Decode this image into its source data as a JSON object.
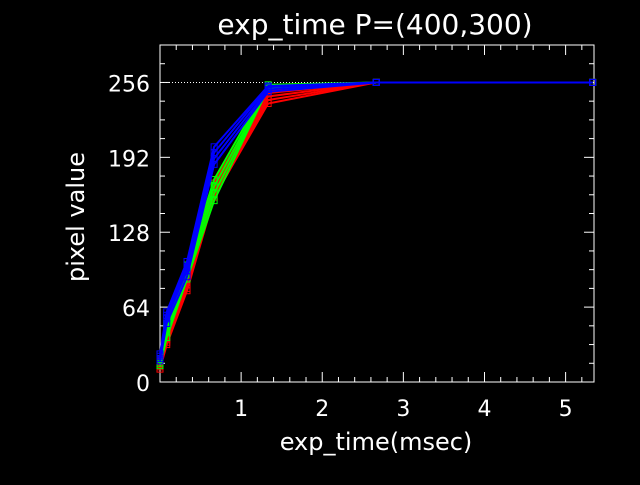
{
  "chart_data": {
    "type": "line",
    "title": "exp_time  P=(400,300)",
    "xlabel": "exp_time(msec)",
    "ylabel": "pixel value",
    "xlim": [
      0,
      5.35
    ],
    "ylim": [
      0,
      288
    ],
    "xticks": [
      1,
      2,
      3,
      4,
      5
    ],
    "yticks": [
      0,
      64,
      128,
      192,
      256
    ],
    "grid": false,
    "legend": "none",
    "reference_line": {
      "y": 256,
      "style": "dotted",
      "color": "#ffffff"
    },
    "x": [
      0,
      0.083,
      0.333,
      0.667,
      1.333,
      2.667,
      5.333
    ],
    "series": [
      {
        "color": "#ff0000",
        "values": [
          11,
          32,
          78,
          158,
          238,
          256,
          256
        ]
      },
      {
        "color": "#ff0000",
        "values": [
          13,
          34,
          80,
          161,
          241,
          256,
          256
        ]
      },
      {
        "color": "#ff0000",
        "values": [
          15,
          36,
          83,
          164,
          244,
          256,
          256
        ]
      },
      {
        "color": "#ff0000",
        "values": [
          17,
          38,
          86,
          167,
          247,
          256,
          256
        ]
      },
      {
        "color": "#ff0000",
        "values": [
          19,
          40,
          89,
          170,
          249,
          256,
          256
        ]
      },
      {
        "color": "#00ff00",
        "values": [
          14,
          38,
          88,
          155,
          251,
          256,
          256
        ]
      },
      {
        "color": "#00ff00",
        "values": [
          16,
          42,
          92,
          161,
          252,
          256,
          256
        ]
      },
      {
        "color": "#00ff00",
        "values": [
          18,
          46,
          96,
          167,
          253,
          256,
          256
        ]
      },
      {
        "color": "#00ff00",
        "values": [
          20,
          50,
          100,
          173,
          254,
          256,
          256
        ]
      },
      {
        "color": "#0000ff",
        "values": [
          18,
          50,
          90,
          186,
          248,
          256,
          256
        ]
      },
      {
        "color": "#0000ff",
        "values": [
          20,
          54,
          95,
          191,
          250,
          256,
          256
        ]
      },
      {
        "color": "#0000ff",
        "values": [
          22,
          57,
          99,
          196,
          252,
          256,
          256
        ]
      },
      {
        "color": "#0000ff",
        "values": [
          24,
          60,
          103,
          201,
          253,
          256,
          256
        ]
      }
    ]
  }
}
